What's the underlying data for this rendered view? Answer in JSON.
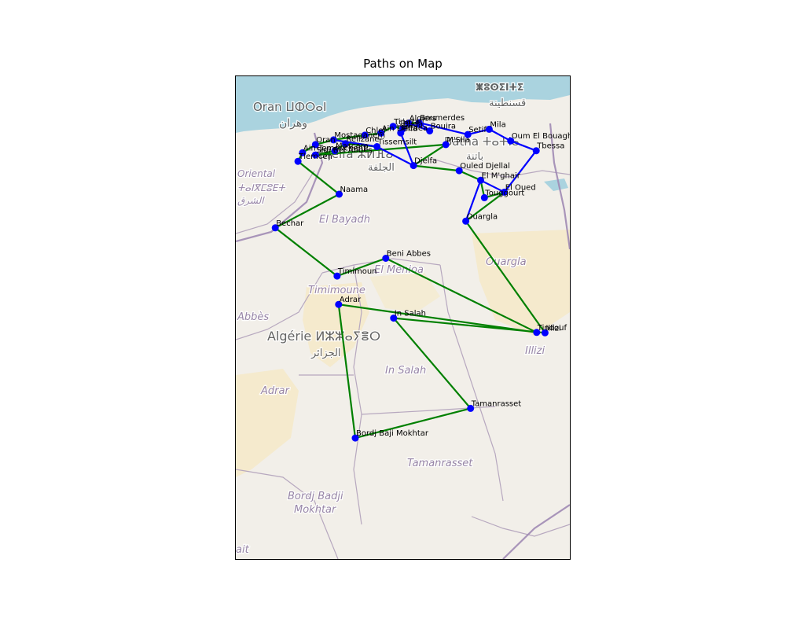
{
  "title": "Paths on Map",
  "colors": {
    "land": "#f2efe9",
    "sea": "#aad3df",
    "desert": "#f5e9c6",
    "border": "#b7a8bf",
    "region_label": "#8e7aa0",
    "city_label": "#555555",
    "green_path": "#008000",
    "blue_path": "#0000ff",
    "marker": "#0000ff"
  },
  "background_labels": [
    {
      "text": "Oran ⵡⵀⵔⴰⵏ",
      "kind": "city"
    },
    {
      "text": "وهران",
      "kind": "city"
    },
    {
      "text": "ⵥⵓⵙⵉⵏⵜⵉ",
      "kind": "city"
    },
    {
      "text": "قسنطينة",
      "kind": "city"
    },
    {
      "text": "الجزائر",
      "kind": "city"
    },
    {
      "text": "Batna ⵜⴰⵜⵏⴰ",
      "kind": "city"
    },
    {
      "text": "باتنة",
      "kind": "city"
    },
    {
      "text": "Djelfa ⵣⵍⴼⴰ",
      "kind": "city"
    },
    {
      "text": "الجلفة",
      "kind": "city"
    },
    {
      "text": "Oriental",
      "kind": "region"
    },
    {
      "text": "ⵜⴰⵏⴳⵎⵓⴹⵜ",
      "kind": "region"
    },
    {
      "text": "الشرق",
      "kind": "region"
    },
    {
      "text": "El Bayadh",
      "kind": "region"
    },
    {
      "text": "El Menioa",
      "kind": "region"
    },
    {
      "text": "Timimoune",
      "kind": "region"
    },
    {
      "text": "Ouargla",
      "kind": "region"
    },
    {
      "text": "Abbès",
      "kind": "region"
    },
    {
      "text": "Algérie ⵍⵣⵣⴰⵢⴻⵔ",
      "kind": "country"
    },
    {
      "text": "الجزائر",
      "kind": "country"
    },
    {
      "text": "Illizi",
      "kind": "region"
    },
    {
      "text": "Adrar",
      "kind": "region"
    },
    {
      "text": "In Salah",
      "kind": "region"
    },
    {
      "text": "Tamanrasset",
      "kind": "region"
    },
    {
      "text": "Bordj Badji",
      "kind": "region"
    },
    {
      "text": "Mokhtar",
      "kind": "region"
    },
    {
      "text": "ait",
      "kind": "region"
    }
  ],
  "chart_data": {
    "type": "map",
    "title": "Paths on Map",
    "points": [
      {
        "name": "Algiers",
        "lon": 3.06,
        "lat": 36.75
      },
      {
        "name": "Boumerdes",
        "lon": 3.48,
        "lat": 36.77
      },
      {
        "name": "Tipaza",
        "lon": 2.45,
        "lat": 36.59
      },
      {
        "name": "Blida",
        "lon": 2.83,
        "lat": 36.47
      },
      {
        "name": "Bouira",
        "lon": 3.9,
        "lat": 36.37
      },
      {
        "name": "Medea",
        "lon": 2.75,
        "lat": 36.27
      },
      {
        "name": "Ain Defla",
        "lon": 1.97,
        "lat": 36.26
      },
      {
        "name": "Chlef",
        "lon": 1.33,
        "lat": 36.16
      },
      {
        "name": "Mostaganem",
        "lon": 0.09,
        "lat": 35.93
      },
      {
        "name": "Relizane",
        "lon": 0.56,
        "lat": 35.74
      },
      {
        "name": "Mascara",
        "lon": 0.14,
        "lat": 35.4
      },
      {
        "name": "Oran",
        "lon": -0.63,
        "lat": 35.7
      },
      {
        "name": "Ain Temouchent",
        "lon": -1.14,
        "lat": 35.3
      },
      {
        "name": "Sidi Bel Abbes",
        "lon": -0.63,
        "lat": 35.19
      },
      {
        "name": "Tlemcen",
        "lon": -1.32,
        "lat": 34.88
      },
      {
        "name": "Tissemsilt",
        "lon": 1.81,
        "lat": 35.6
      },
      {
        "name": "Djelfa",
        "lon": 3.26,
        "lat": 34.67
      },
      {
        "name": "M'Sila",
        "lon": 4.54,
        "lat": 35.7
      },
      {
        "name": "Setif",
        "lon": 5.41,
        "lat": 36.19
      },
      {
        "name": "Mila",
        "lon": 6.26,
        "lat": 36.45
      },
      {
        "name": "Oum El Bouaghi",
        "lon": 7.11,
        "lat": 35.88
      },
      {
        "name": "Tbessa",
        "lon": 8.12,
        "lat": 35.4
      },
      {
        "name": "Ouled Djellal",
        "lon": 5.07,
        "lat": 34.42
      },
      {
        "name": "El M'ghair",
        "lon": 5.92,
        "lat": 33.95
      },
      {
        "name": "El Oued",
        "lon": 6.86,
        "lat": 33.37
      },
      {
        "name": "Touggourt",
        "lon": 6.07,
        "lat": 33.1
      },
      {
        "name": "Ouargla",
        "lon": 5.33,
        "lat": 31.95
      },
      {
        "name": "Naama",
        "lon": 0.31,
        "lat": 33.27
      },
      {
        "name": "Bechar",
        "lon": -2.22,
        "lat": 31.62
      },
      {
        "name": "Timimoun",
        "lon": 0.23,
        "lat": 29.26
      },
      {
        "name": "Beni Abbes",
        "lon": 2.16,
        "lat": 30.13
      },
      {
        "name": "Tindouf",
        "lon": 8.14,
        "lat": 26.5
      },
      {
        "name": "Adrar",
        "lon": 0.29,
        "lat": 27.87
      },
      {
        "name": "Illizi",
        "lon": 8.47,
        "lat": 26.48
      },
      {
        "name": "In Salah",
        "lon": 2.47,
        "lat": 27.2
      },
      {
        "name": "Tamanrasset",
        "lon": 5.52,
        "lat": 22.78
      },
      {
        "name": "Bordj Baji Mokhtar",
        "lon": 0.95,
        "lat": 21.33
      }
    ],
    "paths": [
      {
        "color": "green",
        "stops": [
          "Boumerdes",
          "Algiers",
          "Blida",
          "Tipaza",
          "Ain Defla",
          "Chlef",
          "Mostaganem",
          "Oran",
          "Ain Temouchent",
          "Tlemcen",
          "Naama",
          "Bechar",
          "Timimoun",
          "Beni Abbes",
          "Tindouf",
          "Adrar",
          "Bordj Baji Mokhtar",
          "Tamanrasset",
          "In Salah",
          "Illizi",
          "Ouargla",
          "El Oued",
          "Touggourt",
          "El M'ghair",
          "Ouled Djellal",
          "Djelfa",
          "M'Sila",
          "Sidi Bel Abbes",
          "Mascara",
          "Relizane",
          "Tissemsilt",
          "Mostaganem"
        ]
      },
      {
        "color": "blue",
        "stops": [
          "Mostaganem",
          "Tissemsilt",
          "Djelfa",
          "Medea",
          "Algiers",
          "Bouira",
          "Boumerdes",
          "Setif",
          "Mila",
          "Oum El Bouaghi",
          "Tbessa",
          "El Oued",
          "El M'ghair",
          "Ouargla"
        ]
      }
    ],
    "axes": {
      "visible": false
    },
    "legend": "none"
  }
}
